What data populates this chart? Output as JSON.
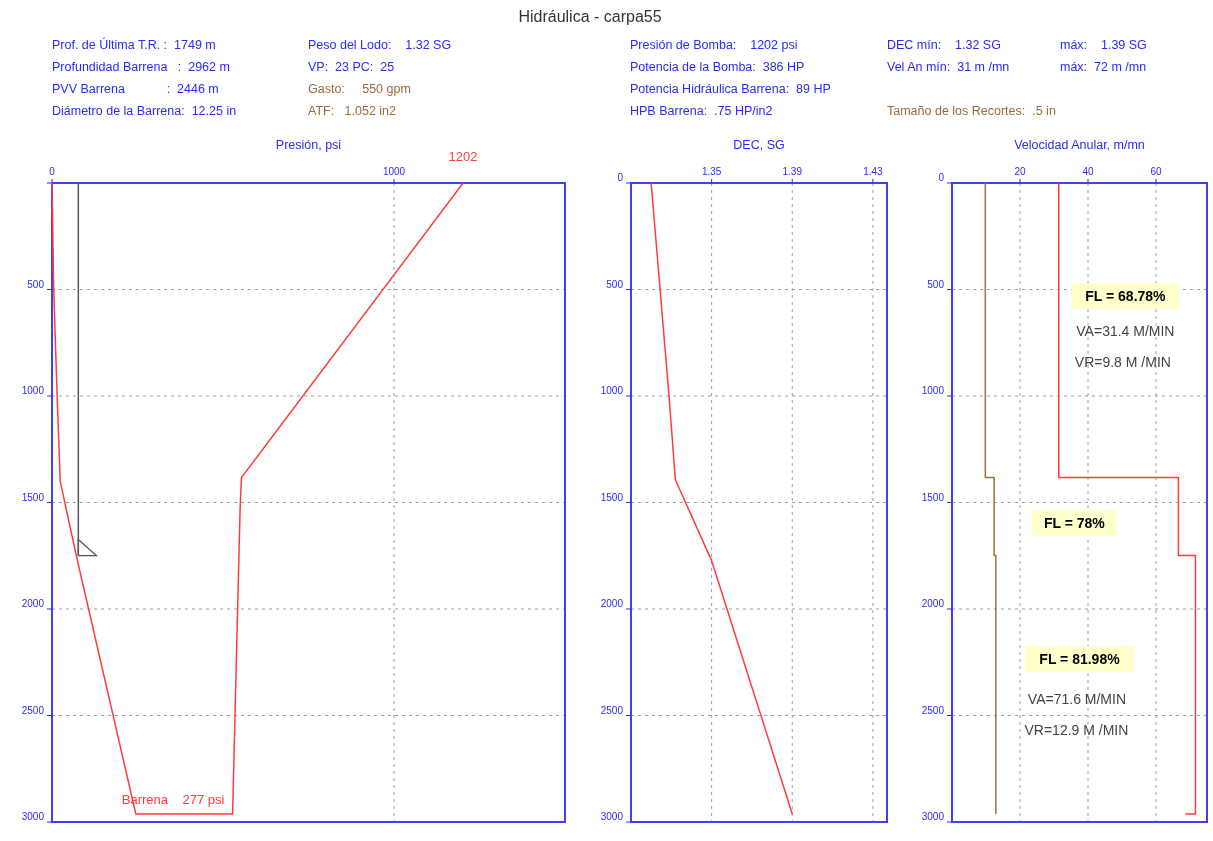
{
  "chart_data": [
    {
      "type": "other",
      "title": "Hidráulica - carpa55",
      "annotations": [
        "Prof. de Última T.R. :  1749 m",
        "Profundidad Barrena   :  2962 m",
        "PVV Barrena            :  2446 m",
        "Diámetro de la Barrena:  12.25 in",
        "Peso del Lodo:    1.32 SG",
        "VP:  23 PC:  25",
        "Gasto:     550 gpm",
        "ATF:   1.052 in2",
        "Presión de Bomba:    1202 psi",
        "Potencia de la Bomba:  386 HP",
        "Potencia Hidráulica Barrena:  89 HP",
        "HPB Barrena:  .75 HP/in2",
        "DEC mín:    1.32 SG",
        "Vel An mín:  31 m /mn",
        "Tamaño de los Recortes:  .5 in",
        "máx:    1.39 SG",
        "máx:  72 m /mn"
      ]
    },
    {
      "type": "line",
      "xlabel": "Presión, psi",
      "xlim": [
        0,
        1500
      ],
      "xticks": [
        0,
        1000
      ],
      "ylim": [
        3000,
        0
      ],
      "yticks": [
        {
          "value": 0,
          "label": null
        },
        500,
        1000,
        1500,
        2000,
        2500,
        3000
      ],
      "grid": true,
      "line_style": "solid",
      "series": [
        {
          "color": "#ff3b3b",
          "x": [
            1202,
            554,
            550,
            528,
            245,
            71,
            24,
            15,
            5,
            0
          ],
          "values": [
            0,
            1383,
            1530,
            2962,
            2962,
            1749,
            1400,
            1000,
            500,
            0
          ]
        },
        {
          "color": "#555555",
          "x": [
            77,
            77
          ],
          "values": [
            0,
            1749
          ]
        }
      ],
      "annotations": [
        {
          "text": "1202",
          "x": 1202,
          "y": 0
        },
        "Barrena    277 psi"
      ]
    },
    {
      "type": "line",
      "xlabel": "DEC, SG",
      "xlim": [
        1.31,
        1.437
      ],
      "xticks": [
        1.35,
        1.39,
        1.43
      ],
      "ylim": [
        3000,
        0
      ],
      "yticks": [
        0,
        500,
        1000,
        1500,
        2000,
        2500,
        3000
      ],
      "grid": true,
      "line_style": "solid",
      "series": [
        {
          "color": "#ff3b3b",
          "x": [
            1.32,
            1.329,
            1.332,
            1.35,
            1.39
          ],
          "values": [
            0,
            1015,
            1393,
            1773,
            2962
          ]
        }
      ]
    },
    {
      "type": "line",
      "xlabel": "Velocidad Anular, m/mn",
      "xlim": [
        0,
        75
      ],
      "xticks": [
        20,
        40,
        60
      ],
      "ylim": [
        3000,
        0
      ],
      "yticks": [
        0,
        500,
        1000,
        1500,
        2000,
        2500,
        3000
      ],
      "grid": true,
      "line_style": "solid",
      "series": [
        {
          "color": "#ff3b3b",
          "x": [
            31.4,
            31.4,
            66.6,
            66.6,
            71.6,
            71.6,
            68.6
          ],
          "values": [
            0,
            1383,
            1383,
            1749,
            1749,
            2962,
            2962
          ]
        },
        {
          "color": "#a0703c",
          "x": [
            9.8,
            9.8,
            12.4,
            12.4,
            12.9,
            12.9
          ],
          "values": [
            0,
            1383,
            1383,
            1749,
            1749,
            2962
          ]
        }
      ],
      "annotations": [
        "FL = 68.78%",
        "VA=31.4 M/MIN",
        "VR=9.8 M /MIN",
        "FL = 78%",
        "FL = 81.98%",
        "VA=71.6 M/MIN",
        "VR=12.9 M /MIN"
      ]
    }
  ]
}
